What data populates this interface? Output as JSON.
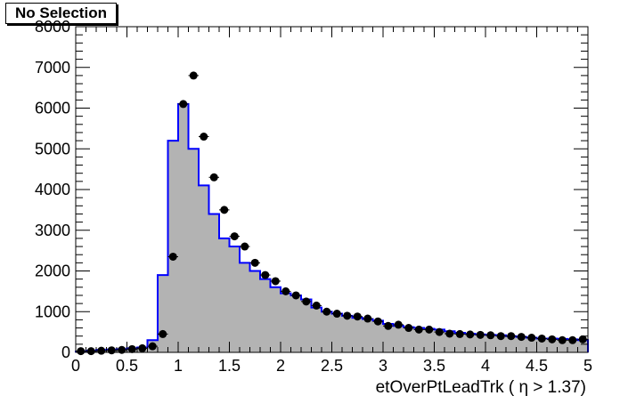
{
  "chart_data": {
    "type": "bar",
    "title": "No Selection",
    "xlabel": "etOverPtLeadTrk ( η > 1.37)",
    "ylabel": "",
    "xlim": [
      0,
      5
    ],
    "ylim": [
      0,
      8000
    ],
    "xticks": [
      "0",
      "0.5",
      "1",
      "1.5",
      "2",
      "2.5",
      "3",
      "3.5",
      "4",
      "4.5",
      "5"
    ],
    "yticks": [
      "0",
      "1000",
      "2000",
      "3000",
      "4000",
      "5000",
      "6000",
      "7000",
      "8000"
    ],
    "legend": "none",
    "grid": false,
    "bin_width": 0.1,
    "colors": {
      "histogram_fill": "#b3b3b3",
      "histogram_line": "#0000ff",
      "points": "#000000"
    },
    "series": [
      {
        "style": "filled-step",
        "x": [
          0.05,
          0.15,
          0.25,
          0.35,
          0.45,
          0.55,
          0.65,
          0.75,
          0.85,
          0.95,
          1.05,
          1.15,
          1.25,
          1.35,
          1.45,
          1.55,
          1.65,
          1.75,
          1.85,
          1.95,
          2.05,
          2.15,
          2.25,
          2.35,
          2.45,
          2.55,
          2.65,
          2.75,
          2.85,
          2.95,
          3.05,
          3.15,
          3.25,
          3.35,
          3.45,
          3.55,
          3.65,
          3.75,
          3.85,
          3.95,
          4.05,
          4.15,
          4.25,
          4.35,
          4.45,
          4.55,
          4.65,
          4.75,
          4.85,
          4.95
        ],
        "values": [
          20,
          40,
          60,
          70,
          80,
          100,
          120,
          300,
          1900,
          5200,
          6100,
          5000,
          4100,
          3400,
          2800,
          2600,
          2200,
          2000,
          1800,
          1600,
          1450,
          1400,
          1300,
          1100,
          1000,
          950,
          900,
          850,
          820,
          780,
          700,
          650,
          620,
          600,
          580,
          560,
          520,
          480,
          460,
          440,
          430,
          420,
          400,
          380,
          360,
          340,
          340,
          330,
          320,
          300
        ]
      },
      {
        "style": "points",
        "x": [
          0.05,
          0.15,
          0.25,
          0.35,
          0.45,
          0.55,
          0.65,
          0.75,
          0.85,
          0.95,
          1.05,
          1.15,
          1.25,
          1.35,
          1.45,
          1.55,
          1.65,
          1.75,
          1.85,
          1.95,
          2.05,
          2.15,
          2.25,
          2.35,
          2.45,
          2.55,
          2.65,
          2.75,
          2.85,
          2.95,
          3.05,
          3.15,
          3.25,
          3.35,
          3.45,
          3.55,
          3.65,
          3.75,
          3.85,
          3.95,
          4.05,
          4.15,
          4.25,
          4.35,
          4.45,
          4.55,
          4.65,
          4.75,
          4.85,
          4.95
        ],
        "values": [
          30,
          30,
          40,
          50,
          60,
          80,
          100,
          150,
          450,
          2350,
          6100,
          6800,
          5300,
          4300,
          3500,
          2850,
          2600,
          2200,
          1900,
          1750,
          1500,
          1400,
          1250,
          1150,
          1000,
          950,
          900,
          880,
          830,
          760,
          650,
          680,
          600,
          560,
          560,
          500,
          460,
          450,
          440,
          430,
          420,
          400,
          400,
          380,
          360,
          340,
          320,
          300,
          300,
          320
        ]
      }
    ]
  }
}
